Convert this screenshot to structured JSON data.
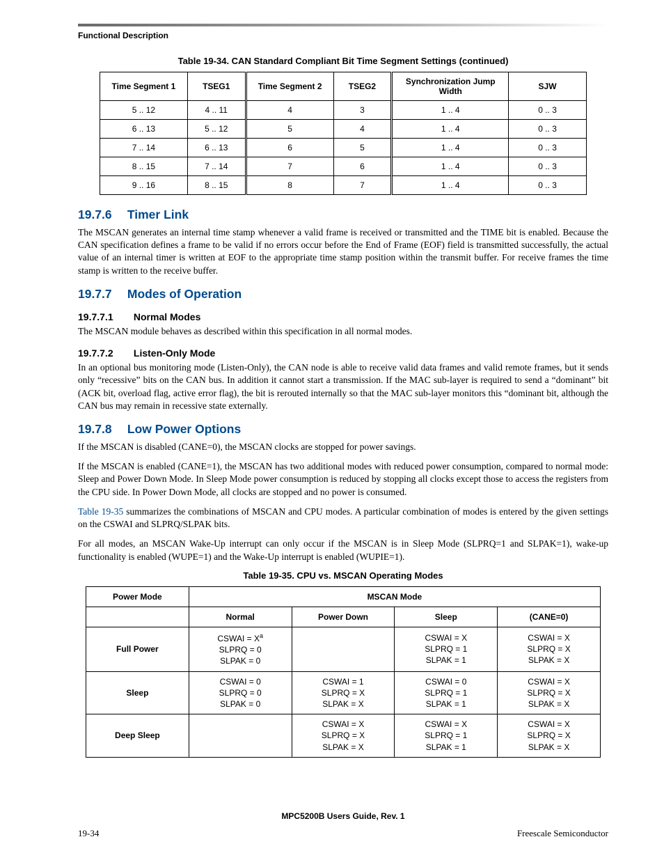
{
  "running_head": "Functional Description",
  "tables": {
    "t34": {
      "caption": "Table 19-34. CAN Standard Compliant Bit Time Segment Settings (continued)",
      "columns": [
        "Time Segment 1",
        "TSEG1",
        "Time Segment 2",
        "TSEG2",
        "Synchronization Jump Width",
        "SJW"
      ],
      "rows": [
        [
          "5 .. 12",
          "4 .. 11",
          "4",
          "3",
          "1 .. 4",
          "0 .. 3"
        ],
        [
          "6 .. 13",
          "5 .. 12",
          "5",
          "4",
          "1 .. 4",
          "0 .. 3"
        ],
        [
          "7 .. 14",
          "6 .. 13",
          "6",
          "5",
          "1 .. 4",
          "0 .. 3"
        ],
        [
          "8 .. 15",
          "7 .. 14",
          "7",
          "6",
          "1 .. 4",
          "0 .. 3"
        ],
        [
          "9 .. 16",
          "8 .. 15",
          "8",
          "7",
          "1 .. 4",
          "0 .. 3"
        ]
      ],
      "col_widths_pct": [
        18,
        12,
        18,
        12,
        24,
        16
      ],
      "border_color": "#000000",
      "header_fontsize_pt": 9,
      "body_fontsize_pt": 9
    },
    "t35": {
      "caption": "Table 19-35. CPU vs. MSCAN Operating Modes",
      "header_row1": {
        "left": "Power Mode",
        "right_span": "MSCAN Mode"
      },
      "columns_row2": [
        "Normal",
        "Power Down",
        "Sleep",
        "(CANE=0)"
      ],
      "col_widths_pct": [
        20,
        20,
        20,
        20,
        20
      ],
      "rows": [
        {
          "label": "Full Power",
          "cells": [
            [
              "CSWAI = Xᵃ",
              "SLPRQ = 0",
              "SLPAK = 0"
            ],
            [],
            [
              "CSWAI = X",
              "SLPRQ = 1",
              "SLPAK = 1"
            ],
            [
              "CSWAI = X",
              "SLPRQ = X",
              "SLPAK = X"
            ]
          ]
        },
        {
          "label": "Sleep",
          "cells": [
            [
              "CSWAI = 0",
              "SLPRQ = 0",
              "SLPAK = 0"
            ],
            [
              "CSWAI = 1",
              "SLPRQ = X",
              "SLPAK = X"
            ],
            [
              "CSWAI = 0",
              "SLPRQ = 1",
              "SLPAK = 1"
            ],
            [
              "CSWAI = X",
              "SLPRQ = X",
              "SLPAK = X"
            ]
          ]
        },
        {
          "label": "Deep Sleep",
          "cells": [
            [],
            [
              "CSWAI = X",
              "SLPRQ = X",
              "SLPAK = X"
            ],
            [
              "CSWAI = X",
              "SLPRQ = 1",
              "SLPAK = 1"
            ],
            [
              "CSWAI = X",
              "SLPRQ = X",
              "SLPAK = X"
            ]
          ]
        }
      ],
      "border_color": "#000000",
      "header_fontsize_pt": 9,
      "body_fontsize_pt": 9
    }
  },
  "sections": {
    "s1": {
      "num": "19.7.6",
      "title": "Timer Link",
      "p1": "The MSCAN generates an internal time stamp whenever a valid frame is received or transmitted and the TIME bit is enabled. Because the CAN specification defines a frame to be valid if no errors occur before the End of Frame (EOF) field is transmitted successfully, the actual value of an internal timer is written at EOF to the appropriate time stamp position within the transmit buffer. For receive frames the time stamp is written to the receive buffer."
    },
    "s2": {
      "num": "19.7.7",
      "title": "Modes of Operation"
    },
    "s2_1": {
      "num": "19.7.7.1",
      "title": "Normal Modes",
      "p1": "The MSCAN module behaves as described within this specification in all normal modes."
    },
    "s2_2": {
      "num": "19.7.7.2",
      "title": "Listen-Only Mode",
      "p1": "In an optional bus monitoring mode (Listen-Only), the CAN node is able to receive valid data frames and valid remote frames, but it sends only “recessive” bits on the CAN bus. In addition it cannot start a transmission. If the MAC sub-layer is required to send a “dominant” bit (ACK bit, overload flag, active error flag), the bit is rerouted internally so that the MAC sub-layer monitors this “dominant bit, although the CAN bus may remain in recessive state externally."
    },
    "s3": {
      "num": "19.7.8",
      "title": "Low Power Options",
      "p1": "If the MSCAN is disabled (CANE=0), the MSCAN clocks are stopped for power savings.",
      "p2": "If the MSCAN is enabled (CANE=1), the MSCAN has two additional modes with reduced power consumption, compared to normal mode: Sleep and Power Down Mode. In Sleep Mode power consumption is reduced by stopping all clocks except those to access the registers from the CPU side. In Power Down Mode, all clocks are stopped and no power is consumed.",
      "p3_link": "Table 19-35",
      "p3_rest": " summarizes the combinations of MSCAN and CPU modes. A particular combination of modes is entered by the given settings on the CSWAI and SLPRQ/SLPAK bits.",
      "p4": "For all modes, an MSCAN Wake-Up interrupt can only occur if the MSCAN is in Sleep Mode (SLPRQ=1 and SLPAK=1), wake-up functionality is enabled (WUPE=1) and the Wake-Up interrupt is enabled (WUPIE=1)."
    }
  },
  "footer": {
    "center": "MPC5200B Users Guide, Rev. 1",
    "left": "19-34",
    "right": "Freescale Semiconductor"
  },
  "colors": {
    "heading_blue": "#004b8d",
    "rule_dark": "#6a6a6a",
    "rule_light": "#ffffff",
    "text": "#000000",
    "background": "#ffffff"
  },
  "typography": {
    "body_font": "Times New Roman",
    "ui_font": "Arial",
    "body_fontsize_pt": 10,
    "h2_fontsize_pt": 13,
    "h3_fontsize_pt": 10.5
  }
}
